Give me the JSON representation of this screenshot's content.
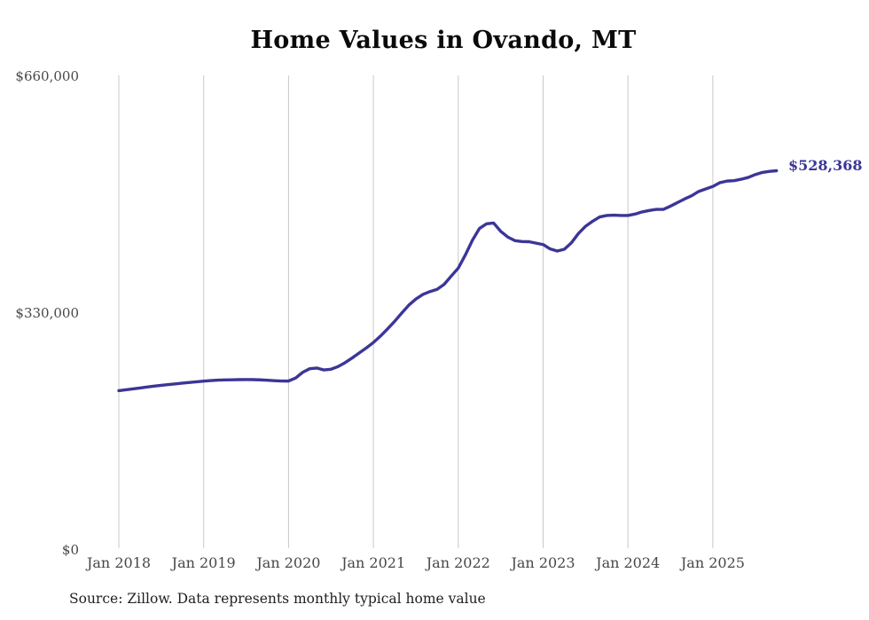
{
  "page": {
    "title": "Home Values in Ovando, MT",
    "source_note": "Source: Zillow. Data represents monthly typical home value"
  },
  "chart_data": {
    "type": "line",
    "title": "Home Values in Ovando, MT",
    "xlabel": "",
    "ylabel": "",
    "ylim": [
      0,
      660000
    ],
    "y_ticks": [
      0,
      330000,
      660000
    ],
    "y_tick_labels": [
      "$0",
      "$330,000",
      "$660,000"
    ],
    "x_tick_labels": [
      "Jan 2018",
      "Jan 2019",
      "Jan 2020",
      "Jan 2021",
      "Jan 2022",
      "Jan 2023",
      "Jan 2024",
      "Jan 2025"
    ],
    "grid": "vertical-only",
    "legend": "none",
    "line_color": "#3b3697",
    "gridline_color": "#c9c9c9",
    "end_label": "$528,368",
    "end_value": 528368,
    "x": [
      "2018-01",
      "2018-02",
      "2018-03",
      "2018-04",
      "2018-05",
      "2018-06",
      "2018-07",
      "2018-08",
      "2018-09",
      "2018-10",
      "2018-11",
      "2018-12",
      "2019-01",
      "2019-02",
      "2019-03",
      "2019-04",
      "2019-05",
      "2019-06",
      "2019-07",
      "2019-08",
      "2019-09",
      "2019-10",
      "2019-11",
      "2019-12",
      "2020-01",
      "2020-02",
      "2020-03",
      "2020-04",
      "2020-05",
      "2020-06",
      "2020-07",
      "2020-08",
      "2020-09",
      "2020-10",
      "2020-11",
      "2020-12",
      "2021-01",
      "2021-02",
      "2021-03",
      "2021-04",
      "2021-05",
      "2021-06",
      "2021-07",
      "2021-08",
      "2021-09",
      "2021-10",
      "2021-11",
      "2021-12",
      "2022-01",
      "2022-02",
      "2022-03",
      "2022-04",
      "2022-05",
      "2022-06",
      "2022-07",
      "2022-08",
      "2022-09",
      "2022-10",
      "2022-11",
      "2022-12",
      "2023-01",
      "2023-02",
      "2023-03",
      "2023-04",
      "2023-05",
      "2023-06",
      "2023-07",
      "2023-08",
      "2023-09",
      "2023-10",
      "2023-11",
      "2023-12",
      "2024-01",
      "2024-02",
      "2024-03",
      "2024-04",
      "2024-05",
      "2024-06",
      "2024-07",
      "2024-08",
      "2024-09",
      "2024-10",
      "2024-11",
      "2024-12",
      "2025-01",
      "2025-02",
      "2025-03",
      "2025-04",
      "2025-05",
      "2025-06",
      "2025-07",
      "2025-08",
      "2025-09",
      "2025-10"
    ],
    "series": [
      {
        "name": "Typical home value",
        "values": [
          222000,
          223200,
          224400,
          225700,
          227000,
          228200,
          229400,
          230400,
          231400,
          232400,
          233400,
          234300,
          235200,
          236000,
          236600,
          236900,
          237100,
          237300,
          237400,
          237300,
          237000,
          236500,
          235900,
          235400,
          235300,
          239500,
          247500,
          252500,
          253500,
          250800,
          251800,
          255500,
          261000,
          267500,
          274500,
          281500,
          289000,
          298000,
          308000,
          318500,
          330000,
          341000,
          349500,
          356000,
          360000,
          363000,
          370000,
          381500,
          392700,
          411000,
          431500,
          448000,
          454500,
          455500,
          444000,
          436000,
          431000,
          429700,
          429500,
          427500,
          425500,
          419400,
          416500,
          419000,
          428000,
          441000,
          451000,
          458000,
          464000,
          466000,
          466500,
          466000,
          466000,
          468000,
          471000,
          473000,
          474500,
          474500,
          479000,
          484000,
          489000,
          493500,
          499500,
          503000,
          506500,
          511800,
          514000,
          514500,
          516500,
          519000,
          523000,
          526000,
          527500,
          528368
        ]
      }
    ]
  }
}
